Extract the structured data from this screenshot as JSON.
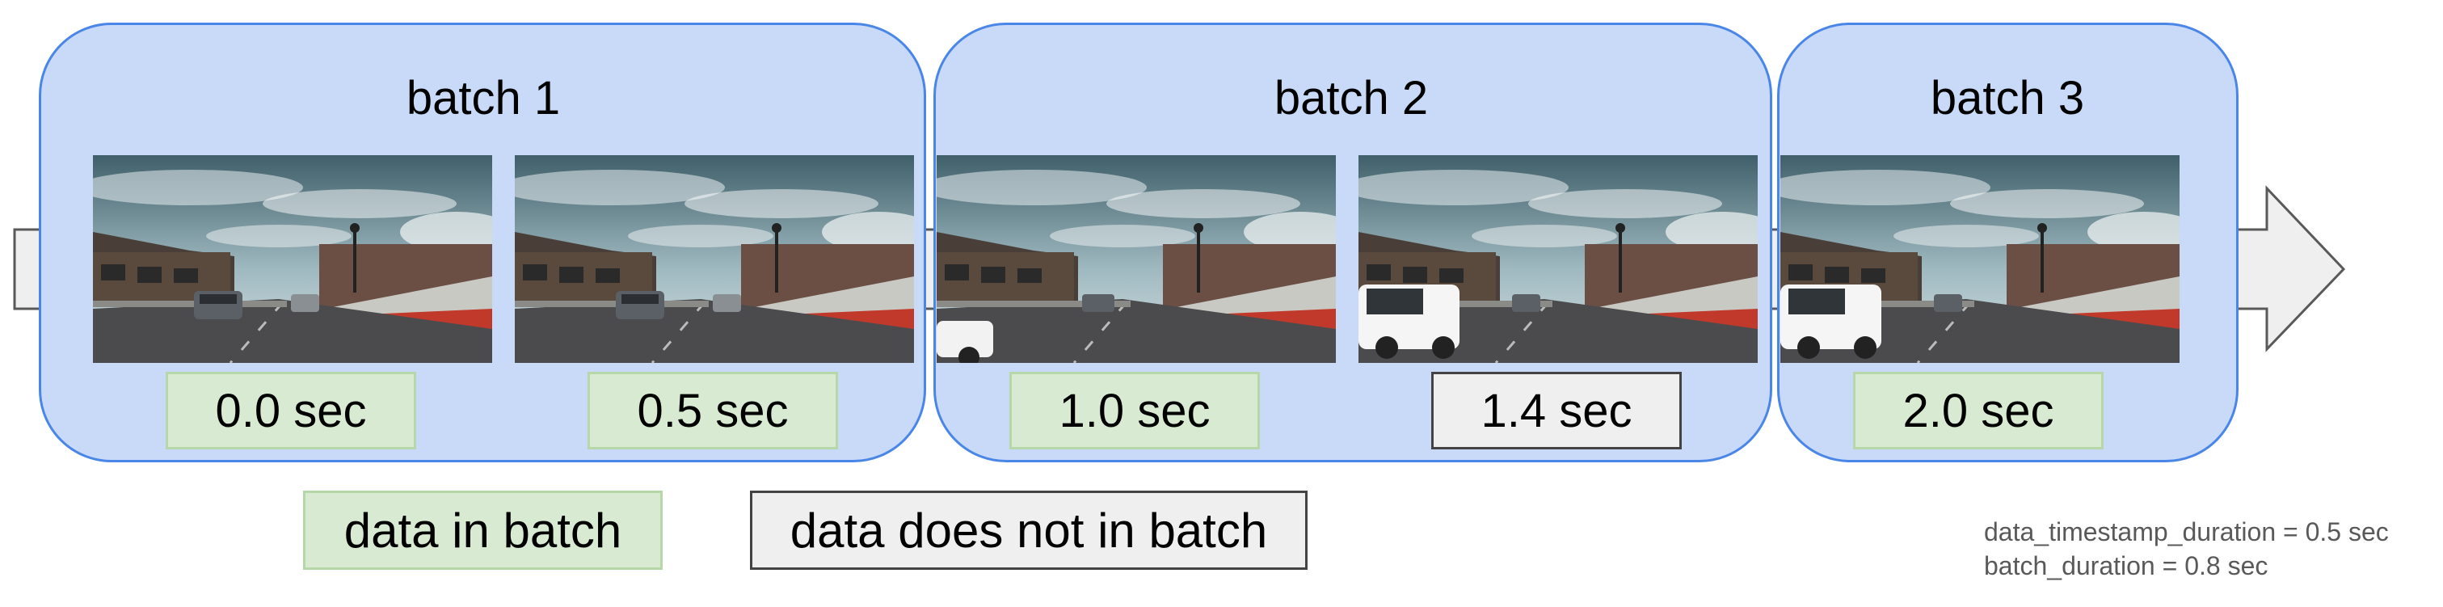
{
  "batches": [
    {
      "title": "batch 1"
    },
    {
      "title": "batch 2"
    },
    {
      "title": "batch 3"
    }
  ],
  "frames": [
    {
      "timestamp": "0.0 sec",
      "status": "in_batch",
      "car": "none"
    },
    {
      "timestamp": "0.5 sec",
      "status": "in_batch",
      "car": "none"
    },
    {
      "timestamp": "1.0 sec",
      "status": "in_batch",
      "car": "partial-truck"
    },
    {
      "timestamp": "1.4 sec",
      "status": "not_in_batch",
      "car": "truck"
    },
    {
      "timestamp": "2.0 sec",
      "status": "in_batch",
      "car": "truck"
    }
  ],
  "legend": {
    "in_batch": "data in batch",
    "not_in_batch": "data does not in batch"
  },
  "notes": {
    "data_timestamp_duration": "data_timestamp_duration = 0.5 sec",
    "batch_duration": "batch_duration = 0.8 sec"
  },
  "colors": {
    "batch_fill": "#c9daf8",
    "batch_border": "#4a86e8",
    "in_batch_fill": "#d9ead3",
    "in_batch_border": "#b6d7a8",
    "not_in_batch_fill": "#efefef",
    "not_in_batch_border": "#434343",
    "arrow_fill": "#efefef",
    "arrow_border": "#595959"
  },
  "icons": {
    "timeline": "timeline-arrow-icon",
    "frame": "street-camera-frame-icon"
  }
}
